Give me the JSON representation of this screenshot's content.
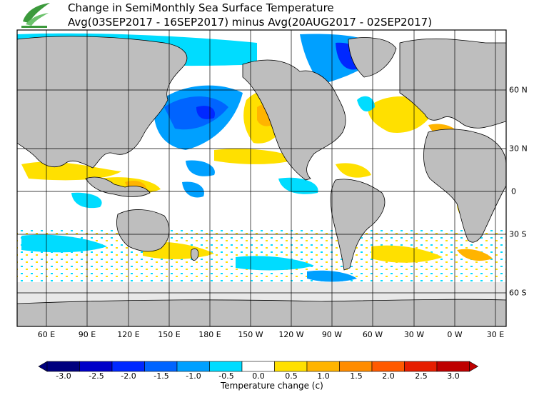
{
  "header": {
    "title_line1": "Change in SemiMonthly Sea Surface Temperature",
    "title_line2": "Avg(03SEP2017 - 16SEP2017) minus Avg(20AUG2017 - 02SEP2017)"
  },
  "map": {
    "projection": "equirectangular",
    "lon_labels": [
      "60 E",
      "90 E",
      "120 E",
      "150 E",
      "180 E",
      "150 W",
      "120 W",
      "90 W",
      "60 W",
      "30 W",
      "0 W",
      "30 E"
    ],
    "lat_labels": [
      "60 N",
      "30 N",
      "0",
      "30 S",
      "60 S"
    ],
    "colors": {
      "land": "#bebebe",
      "ice": "#e8e8e8",
      "grid": "#000000",
      "border": "#000000"
    }
  },
  "colorbar": {
    "title": "Temperature change  (c)",
    "tick_labels": [
      "-3.0",
      "-2.5",
      "-2.0",
      "-1.5",
      "-1.0",
      "-0.5",
      "0.0",
      "0.5",
      "1.0",
      "1.5",
      "2.0",
      "2.5",
      "3.0"
    ],
    "colors": [
      "#00007e",
      "#0000c8",
      "#0028ff",
      "#0064ff",
      "#00a0ff",
      "#00dcff",
      "#ffffff",
      "#ffe000",
      "#ffb400",
      "#ff8c00",
      "#ff5a00",
      "#e61e00",
      "#be0000"
    ]
  }
}
